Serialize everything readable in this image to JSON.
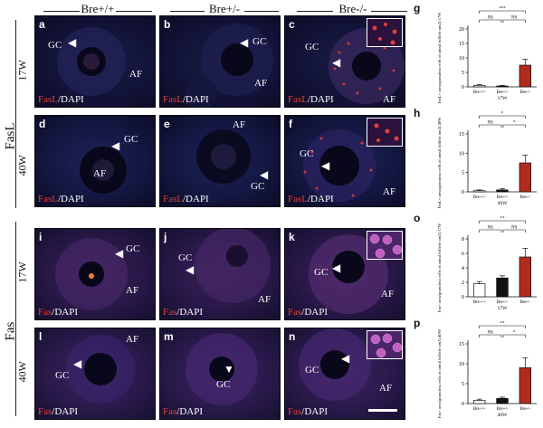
{
  "figure": {
    "column_headers": [
      "Bre+/+",
      "Bre+/-",
      "Bre-/-"
    ],
    "groups": [
      {
        "label": "FasL",
        "rows": [
          "17W",
          "40W"
        ]
      },
      {
        "label": "Fas",
        "rows": [
          "17W",
          "40W"
        ]
      }
    ],
    "panels": [
      {
        "letter": "a",
        "stain_red": "FasL",
        "stain_white": "/DAPI",
        "gc": "GC",
        "af": "AF"
      },
      {
        "letter": "b",
        "stain_red": "FasL",
        "stain_white": "/DAPI",
        "gc": "GC",
        "af": "AF"
      },
      {
        "letter": "c",
        "stain_red": "FasL",
        "stain_white": "/DAPI",
        "gc": "GC",
        "af": "AF"
      },
      {
        "letter": "d",
        "stain_red": "FasL",
        "stain_white": "/DAPI",
        "gc": "GC",
        "af": "AF"
      },
      {
        "letter": "e",
        "stain_red": "FasL",
        "stain_white": "/DAPI",
        "gc": "GC",
        "af": "AF"
      },
      {
        "letter": "f",
        "stain_red": "FasL",
        "stain_white": "/DAPI",
        "gc": "GC",
        "af": "AF"
      },
      {
        "letter": "i",
        "stain_red": "Fas",
        "stain_white": "/DAPI",
        "gc": "GC",
        "af": "AF"
      },
      {
        "letter": "j",
        "stain_red": "Fas",
        "stain_white": "/DAPI",
        "gc": "GC",
        "af": "AF"
      },
      {
        "letter": "k",
        "stain_red": "Fas",
        "stain_white": "/DAPI",
        "gc": "GC",
        "af": "AF"
      },
      {
        "letter": "l",
        "stain_red": "Fas",
        "stain_white": "/DAPI",
        "gc": "GC",
        "af": "AF"
      },
      {
        "letter": "m",
        "stain_red": "Fas",
        "stain_white": "/DAPI",
        "gc": "GC",
        "af": "AF"
      },
      {
        "letter": "n",
        "stain_red": "Fas",
        "stain_white": "/DAPI",
        "gc": "GC",
        "af": "AF"
      }
    ],
    "colors": {
      "fasl_red": "#e0403a",
      "bar_red": "#b22a1c",
      "bar_black": "#111111",
      "bar_white": "#ffffff"
    }
  },
  "chart_data": [
    {
      "panel": "g",
      "type": "bar",
      "categories": [
        "Bre+/+",
        "Bre+/-",
        "Bre-/-"
      ],
      "values": [
        0.5,
        0.3,
        7.5
      ],
      "errors": [
        0.3,
        0.2,
        2.0
      ],
      "ylim": [
        0,
        20
      ],
      "yticks": [
        0,
        5,
        10,
        15,
        20
      ],
      "ylabel": "FasL+ area/granulosa cells of antral follicle um2) 17W",
      "xlabel": "17W",
      "significance": [
        "***",
        "NS",
        "NS"
      ]
    },
    {
      "panel": "h",
      "type": "bar",
      "categories": [
        "Bre+/+",
        "Bre+/-",
        "Bre-/-"
      ],
      "values": [
        0.3,
        0.5,
        7.5
      ],
      "errors": [
        0.2,
        0.3,
        2.0
      ],
      "ylim": [
        0,
        15
      ],
      "yticks": [
        0,
        5,
        10,
        15
      ],
      "ylabel": "FasL+ area/granulosa cells of antral follicle um2) 40W",
      "xlabel": "40W",
      "significance": [
        "*",
        "NS",
        "*"
      ]
    },
    {
      "panel": "o",
      "type": "bar",
      "categories": [
        "Bre+/+",
        "Bre+/-",
        "Bre-/-"
      ],
      "values": [
        1.8,
        2.6,
        5.5
      ],
      "errors": [
        0.3,
        0.3,
        1.2
      ],
      "ylim": [
        0,
        8
      ],
      "yticks": [
        0,
        2,
        4,
        6,
        8
      ],
      "ylabel": "Fas+ area/granulosa cells of antral follicle um2) 17W",
      "xlabel": "17W",
      "significance": [
        "**",
        "NS",
        "NS"
      ]
    },
    {
      "panel": "p",
      "type": "bar",
      "categories": [
        "Bre+/+",
        "Bre+/-",
        "Bre-/-"
      ],
      "values": [
        0.8,
        1.3,
        9.0
      ],
      "errors": [
        0.3,
        0.3,
        2.5
      ],
      "ylim": [
        0,
        15
      ],
      "yticks": [
        0,
        5,
        10,
        15
      ],
      "ylabel": "Fas+ area/granulosa cells of antral follicle um2) 40W",
      "xlabel": "40W",
      "significance": [
        "**",
        "NS",
        "*"
      ]
    }
  ]
}
